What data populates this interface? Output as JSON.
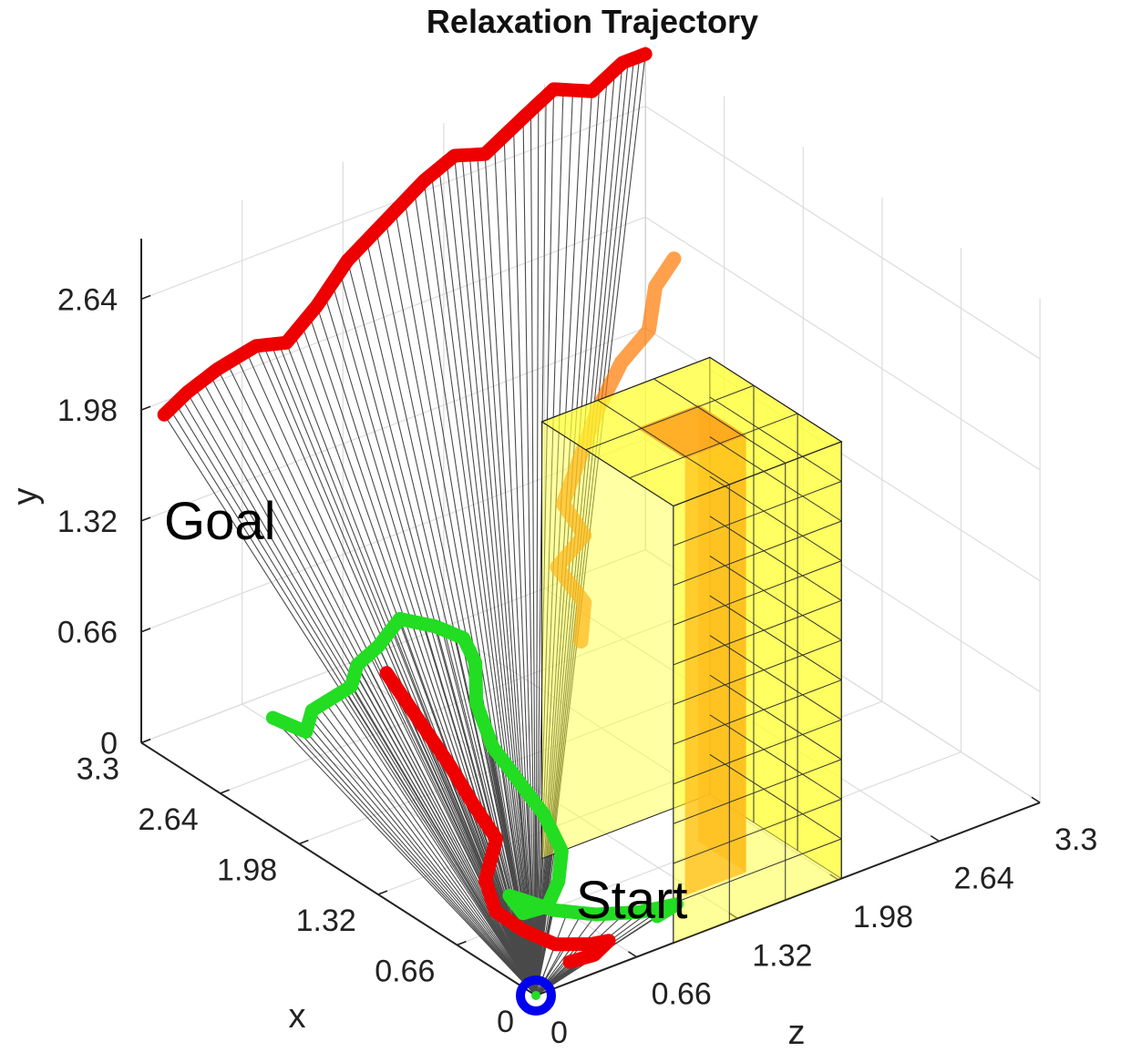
{
  "chart_data": {
    "type": "3d-line",
    "title": "Relaxation Trajectory",
    "xlabel": "x",
    "ylabel": "y",
    "zlabel": "z",
    "xlim": [
      0,
      3.3
    ],
    "ylim": [
      0,
      3.0
    ],
    "zlim": [
      0,
      3.3
    ],
    "x_ticks": [
      "0",
      "0.66",
      "1.32",
      "1.98",
      "2.64",
      "3.3"
    ],
    "y_ticks": [
      "0",
      "0.66",
      "1.32",
      "1.98",
      "2.64"
    ],
    "z_ticks": [
      "0",
      "0.66",
      "1.32",
      "1.98",
      "2.64",
      "3.3"
    ],
    "grid": true,
    "annotations": [
      {
        "text": "Goal"
      },
      {
        "text": "Start"
      }
    ],
    "obstacle": {
      "x": [
        0.0,
        1.1
      ],
      "z": [
        0.9,
        2.0
      ],
      "y": [
        0.0,
        2.6
      ],
      "inner_x": [
        0.35,
        0.75
      ],
      "inner_z": [
        1.25,
        1.65
      ],
      "face_color": "#ffff33",
      "inner_color": "#ff7a00"
    },
    "base_point": {
      "x": 0,
      "y": 0,
      "z": 0,
      "color": "#0000ee"
    },
    "series": [
      {
        "color": "#ee0000",
        "role": "outer",
        "points": [
          [
            3.3,
            1.9,
            0.15
          ],
          [
            3.3,
            1.98,
            0.3
          ],
          [
            3.3,
            2.05,
            0.5
          ],
          [
            3.3,
            2.1,
            0.75
          ],
          [
            3.3,
            2.05,
            0.95
          ],
          [
            3.3,
            2.2,
            1.15
          ],
          [
            3.3,
            2.4,
            1.35
          ],
          [
            3.3,
            2.55,
            1.6
          ],
          [
            3.3,
            2.7,
            1.85
          ],
          [
            3.3,
            2.78,
            2.05
          ],
          [
            3.3,
            2.72,
            2.25
          ],
          [
            3.3,
            2.85,
            2.5
          ],
          [
            3.3,
            2.95,
            2.7
          ],
          [
            3.3,
            2.85,
            2.95
          ],
          [
            3.3,
            2.95,
            3.15
          ],
          [
            3.3,
            2.95,
            3.3
          ]
        ]
      },
      {
        "color": "#ee0000",
        "role": "near",
        "points": [
          [
            1.25,
            1.35,
            0.0
          ],
          [
            1.05,
            1.15,
            0.05
          ],
          [
            0.85,
            0.95,
            0.1
          ],
          [
            0.7,
            0.75,
            0.15
          ],
          [
            0.65,
            0.55,
            0.25
          ],
          [
            0.55,
            0.4,
            0.1
          ],
          [
            0.4,
            0.3,
            0.05
          ],
          [
            0.3,
            0.2,
            0.15
          ],
          [
            0.22,
            0.1,
            0.3
          ],
          [
            0.18,
            0.05,
            0.5
          ],
          [
            0.22,
            0.0,
            0.65
          ],
          [
            0.15,
            0.0,
            0.5
          ],
          [
            0.1,
            0.05,
            0.3
          ]
        ]
      },
      {
        "color": "#22dd22",
        "role": "near",
        "points": [
          [
            2.2,
            0.65,
            0.0
          ],
          [
            2.05,
            0.6,
            0.1
          ],
          [
            2.0,
            0.75,
            0.1
          ],
          [
            1.9,
            0.85,
            0.15
          ],
          [
            1.8,
            0.95,
            0.2
          ],
          [
            1.75,
            1.1,
            0.2
          ],
          [
            1.7,
            1.2,
            0.3
          ],
          [
            1.65,
            1.35,
            0.4
          ],
          [
            1.55,
            1.3,
            0.55
          ],
          [
            1.5,
            1.2,
            0.7
          ],
          [
            1.4,
            1.1,
            0.7
          ],
          [
            1.2,
            1.0,
            0.55
          ],
          [
            1.0,
            0.85,
            0.5
          ],
          [
            0.85,
            0.7,
            0.55
          ],
          [
            0.7,
            0.55,
            0.6
          ],
          [
            0.55,
            0.4,
            0.6
          ],
          [
            0.45,
            0.3,
            0.5
          ],
          [
            0.35,
            0.25,
            0.35
          ],
          [
            0.3,
            0.3,
            0.15
          ],
          [
            0.35,
            0.4,
            0.1
          ],
          [
            0.3,
            0.25,
            0.35
          ],
          [
            0.2,
            0.2,
            0.55
          ],
          [
            0.15,
            0.15,
            0.8
          ],
          [
            0.1,
            0.15,
            1.0
          ],
          [
            0.2,
            0.05,
            0.95
          ]
        ]
      },
      {
        "color": "#ff7700",
        "role": "behind",
        "points": [
          [
            0.9,
            1.35,
            1.0
          ],
          [
            1.0,
            1.5,
            1.1
          ],
          [
            1.1,
            1.7,
            1.0
          ],
          [
            1.0,
            1.9,
            1.1
          ],
          [
            1.05,
            2.1,
            1.0
          ],
          [
            1.1,
            2.3,
            1.15
          ],
          [
            1.15,
            2.5,
            1.3
          ],
          [
            1.2,
            2.7,
            1.5
          ],
          [
            1.1,
            2.9,
            1.6
          ],
          [
            1.3,
            3.0,
            1.8
          ],
          [
            1.4,
            3.05,
            2.0
          ]
        ]
      }
    ]
  }
}
